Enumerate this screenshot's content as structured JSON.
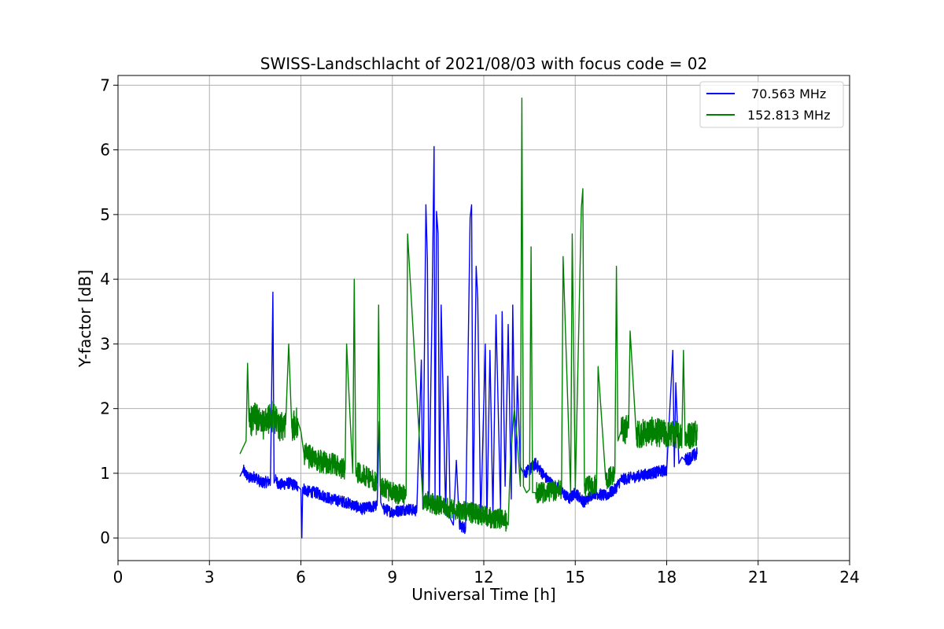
{
  "chart_data": {
    "type": "line",
    "title": "SWISS-Landschlacht of 2021/08/03 with focus code = 02",
    "xlabel": "Universal Time [h]",
    "ylabel": "Y-factor [dB]",
    "xlim": [
      0,
      24
    ],
    "ylim": [
      -0.35,
      7.15
    ],
    "xticks": [
      0,
      3,
      6,
      9,
      12,
      15,
      18,
      21,
      24
    ],
    "xtick_labels": [
      "0",
      "3",
      "6",
      "9",
      "12",
      "15",
      "18",
      "21",
      "24"
    ],
    "yticks": [
      0,
      1,
      2,
      3,
      4,
      5,
      6,
      7
    ],
    "ytick_labels": [
      "0",
      "1",
      "2",
      "3",
      "4",
      "5",
      "6",
      "7"
    ],
    "grid": true,
    "legend_position": "top-right",
    "series": [
      {
        "name": "70.563 MHz",
        "color": "#0000ff",
        "x": [
          4.0,
          4.1,
          4.3,
          4.5,
          4.7,
          5.0,
          5.08,
          5.12,
          5.16,
          5.3,
          5.6,
          5.9,
          6.0,
          6.03,
          6.06,
          6.2,
          6.5,
          7.0,
          7.5,
          8.0,
          8.5,
          8.57,
          8.62,
          8.7,
          9.0,
          9.5,
          9.8,
          9.95,
          10.0,
          10.1,
          10.15,
          10.2,
          10.3,
          10.37,
          10.4,
          10.45,
          10.5,
          10.55,
          10.6,
          10.75,
          10.82,
          10.9,
          11.0,
          11.1,
          11.2,
          11.4,
          11.55,
          11.6,
          11.65,
          11.75,
          11.8,
          11.9,
          12.05,
          12.1,
          12.2,
          12.3,
          12.4,
          12.55,
          12.6,
          12.7,
          12.8,
          12.9,
          12.95,
          13.0,
          13.05,
          13.1,
          13.2,
          13.3,
          13.5,
          13.7,
          14.0,
          14.3,
          14.5,
          14.8,
          15.0,
          15.3,
          15.6,
          16.0,
          16.3,
          16.5,
          17.0,
          17.5,
          18.0,
          18.2,
          18.25,
          18.3,
          18.4,
          18.5,
          18.6,
          18.8,
          19.0
        ],
        "y": [
          0.95,
          1.05,
          0.92,
          0.95,
          0.85,
          0.88,
          3.8,
          0.85,
          0.9,
          0.82,
          0.85,
          0.8,
          0.75,
          0.0,
          0.78,
          0.72,
          0.7,
          0.6,
          0.55,
          0.45,
          0.5,
          1.8,
          0.55,
          0.45,
          0.4,
          0.45,
          0.42,
          2.75,
          0.45,
          5.15,
          4.3,
          0.5,
          3.45,
          6.05,
          0.6,
          5.05,
          4.7,
          0.4,
          3.6,
          0.35,
          2.5,
          0.3,
          0.2,
          1.2,
          0.2,
          0.15,
          4.95,
          5.15,
          0.3,
          4.2,
          3.7,
          0.25,
          3.0,
          0.2,
          2.9,
          0.35,
          3.45,
          0.45,
          3.5,
          0.8,
          3.3,
          0.6,
          3.6,
          2.0,
          1.0,
          2.5,
          1.1,
          1.0,
          1.05,
          1.15,
          0.95,
          0.8,
          0.75,
          0.6,
          0.7,
          0.55,
          0.7,
          0.65,
          0.75,
          0.9,
          0.95,
          1.0,
          1.05,
          2.9,
          1.1,
          2.4,
          1.15,
          1.25,
          1.2,
          1.25,
          1.3
        ]
      },
      {
        "name": "152.813 MHz",
        "color": "#008000",
        "x": [
          4.0,
          4.1,
          4.2,
          4.25,
          4.3,
          4.5,
          4.75,
          4.9,
          5.1,
          5.3,
          5.5,
          5.6,
          5.7,
          5.9,
          6.0,
          6.1,
          6.5,
          7.0,
          7.45,
          7.5,
          7.7,
          7.75,
          7.8,
          8.0,
          8.5,
          8.55,
          8.6,
          9.0,
          9.45,
          9.5,
          10.0,
          10.2,
          10.5,
          11.0,
          11.5,
          12.0,
          12.3,
          12.6,
          12.75,
          12.8,
          12.85,
          12.9,
          13.0,
          13.1,
          13.2,
          13.25,
          13.3,
          13.4,
          13.5,
          13.55,
          13.6,
          13.7,
          14.0,
          14.55,
          14.6,
          14.85,
          14.9,
          15.0,
          15.2,
          15.25,
          15.3,
          15.5,
          15.7,
          15.75,
          16.0,
          16.3,
          16.35,
          16.4,
          16.5,
          16.75,
          16.8,
          17.0,
          17.5,
          18.0,
          18.5,
          18.55,
          18.6,
          19.0
        ],
        "y": [
          1.3,
          1.4,
          1.5,
          2.7,
          1.8,
          1.85,
          1.75,
          1.8,
          1.9,
          1.7,
          1.75,
          3.0,
          1.7,
          1.8,
          1.65,
          1.3,
          1.2,
          1.15,
          1.05,
          3.0,
          1.0,
          4.0,
          1.0,
          1.0,
          0.85,
          3.6,
          0.8,
          0.7,
          0.65,
          4.7,
          0.6,
          0.55,
          0.5,
          0.45,
          0.4,
          0.35,
          0.3,
          0.3,
          0.25,
          0.2,
          0.9,
          1.4,
          2.0,
          1.5,
          0.8,
          6.8,
          0.8,
          0.7,
          0.75,
          4.5,
          0.7,
          0.7,
          0.7,
          0.75,
          4.35,
          0.7,
          4.7,
          0.75,
          5.1,
          5.4,
          0.8,
          0.8,
          0.85,
          2.65,
          0.9,
          1.0,
          4.2,
          1.5,
          1.65,
          1.7,
          3.2,
          1.6,
          1.65,
          1.6,
          1.6,
          2.9,
          1.55,
          1.65
        ]
      }
    ]
  }
}
